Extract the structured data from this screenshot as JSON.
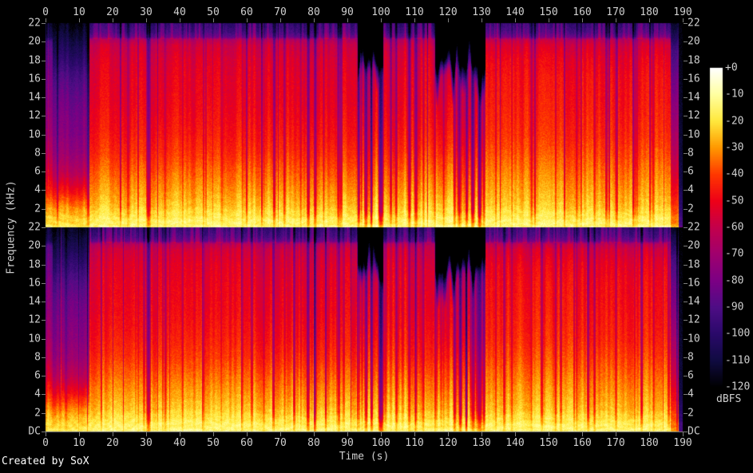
{
  "credit": "Created by SoX",
  "chart_data": {
    "type": "heatmap",
    "subtype": "stereo-spectrogram",
    "title": "",
    "xlabel": "Time (s)",
    "ylabel": "Frequency (kHz)",
    "x_range": [
      0,
      190
    ],
    "x_ticks": [
      0,
      10,
      20,
      30,
      40,
      50,
      60,
      70,
      80,
      90,
      100,
      110,
      120,
      130,
      140,
      150,
      160,
      170,
      180,
      190
    ],
    "y_range_khz": [
      0,
      22
    ],
    "freq_ticks_khz": [
      22,
      20,
      18,
      16,
      14,
      12,
      10,
      8,
      6,
      4,
      2
    ],
    "dc_label": "DC",
    "channels": 2,
    "grid": false,
    "colors": {
      "background": "#000000",
      "axis": "#7d7d7d",
      "text": "#cfcfcf",
      "credit_text": "#ffffff"
    },
    "colorbar": {
      "unit": "dBFS",
      "db_range": [
        0,
        -120
      ],
      "tick_labels": [
        "+0",
        "-10",
        "-20",
        "-30",
        "-40",
        "-50",
        "-60",
        "-70",
        "-80",
        "-90",
        "-100",
        "-110",
        "-120"
      ],
      "stops": [
        {
          "db": 0,
          "hex": "#ffffff"
        },
        {
          "db": -10,
          "hex": "#ffffa0"
        },
        {
          "db": -20,
          "hex": "#ffe83c"
        },
        {
          "db": -30,
          "hex": "#ff9800"
        },
        {
          "db": -40,
          "hex": "#ff3800"
        },
        {
          "db": -50,
          "hex": "#ee0018"
        },
        {
          "db": -60,
          "hex": "#c3004c"
        },
        {
          "db": -70,
          "hex": "#a0006e"
        },
        {
          "db": -80,
          "hex": "#7c0084"
        },
        {
          "db": -90,
          "hex": "#4e0d85"
        },
        {
          "db": -100,
          "hex": "#2a096a"
        },
        {
          "db": -110,
          "hex": "#100b41"
        },
        {
          "db": -120,
          "hex": "#000000"
        }
      ]
    },
    "seeds": [
      20,
      1020
    ],
    "profiles": {
      "introburst": [
        [
          0,
          -19
        ],
        [
          1,
          -22
        ],
        [
          2,
          -28
        ],
        [
          3,
          -36
        ],
        [
          4,
          -44
        ],
        [
          5,
          -50
        ],
        [
          6,
          -56
        ],
        [
          8,
          -64
        ],
        [
          10,
          -70
        ],
        [
          12,
          -74
        ],
        [
          14,
          -77
        ],
        [
          16,
          -80
        ],
        [
          18,
          -84
        ],
        [
          20,
          -90
        ],
        [
          20.5,
          -106
        ],
        [
          22,
          -114
        ]
      ],
      "intro": [
        [
          0,
          -19
        ],
        [
          1,
          -23
        ],
        [
          2,
          -30
        ],
        [
          3,
          -39
        ],
        [
          4,
          -48
        ],
        [
          5,
          -56
        ],
        [
          6,
          -63
        ],
        [
          8,
          -72
        ],
        [
          10,
          -77
        ],
        [
          12,
          -80
        ],
        [
          14,
          -84
        ],
        [
          16,
          -90
        ],
        [
          18,
          -99
        ],
        [
          20,
          -108
        ],
        [
          22,
          -117
        ]
      ],
      "loud": [
        [
          0,
          -15
        ],
        [
          0.7,
          -16
        ],
        [
          1.5,
          -20
        ],
        [
          2.5,
          -25
        ],
        [
          4,
          -30
        ],
        [
          6,
          -36
        ],
        [
          8,
          -42
        ],
        [
          10,
          -46
        ],
        [
          13,
          -50
        ],
        [
          16,
          -52
        ],
        [
          18,
          -54
        ],
        [
          19.6,
          -58
        ],
        [
          20.2,
          -64
        ],
        [
          20.5,
          -84
        ],
        [
          21,
          -92
        ],
        [
          22,
          -99
        ]
      ],
      "loud2": [
        [
          0,
          -15
        ],
        [
          0.7,
          -16
        ],
        [
          1.5,
          -20
        ],
        [
          2.5,
          -25
        ],
        [
          4,
          -29
        ],
        [
          6,
          -34
        ],
        [
          8,
          -39
        ],
        [
          10,
          -43
        ],
        [
          13,
          -46
        ],
        [
          16,
          -48
        ],
        [
          18,
          -51
        ],
        [
          19.6,
          -56
        ],
        [
          20.2,
          -62
        ],
        [
          20.5,
          -82
        ],
        [
          21,
          -91
        ],
        [
          22,
          -98
        ]
      ],
      "break": [
        [
          0,
          -15
        ],
        [
          1,
          -18
        ],
        [
          2,
          -24
        ],
        [
          3.5,
          -30
        ],
        [
          5,
          -35
        ],
        [
          7,
          -41
        ],
        [
          9,
          -47
        ],
        [
          12,
          -53
        ],
        [
          14,
          -56
        ],
        [
          16,
          -60
        ],
        [
          17,
          -68
        ],
        [
          18,
          -88
        ],
        [
          19,
          -100
        ],
        [
          22,
          -110
        ]
      ],
      "fade": [
        [
          0,
          -30
        ],
        [
          1.5,
          -36
        ],
        [
          3,
          -44
        ],
        [
          5,
          -52
        ],
        [
          8,
          -62
        ],
        [
          12,
          -72
        ],
        [
          16,
          -82
        ],
        [
          19,
          -92
        ],
        [
          20.3,
          -102
        ],
        [
          22,
          -114
        ]
      ],
      "silence": [
        [
          0,
          -90
        ],
        [
          2,
          -100
        ],
        [
          5,
          -110
        ],
        [
          22,
          -120
        ]
      ]
    },
    "sections": [
      {
        "t0": 0,
        "t1": 2,
        "profile": "introburst",
        "colvar": 6,
        "streaks": 0.5
      },
      {
        "t0": 2,
        "t1": 13,
        "profile": "intro",
        "colvar": 5,
        "streaks": 1
      },
      {
        "t0": 13,
        "t1": 93,
        "profile": "loud",
        "colvar": 5,
        "hfstripes": 1
      },
      {
        "t0": 93,
        "t1": 100.6,
        "profile": "break",
        "colvar": 10,
        "breakhf": 1
      },
      {
        "t0": 100.6,
        "t1": 116,
        "profile": "loud",
        "colvar": 8,
        "hfstripes": 1
      },
      {
        "t0": 116,
        "t1": 131,
        "profile": "break",
        "colvar": 11,
        "breakhf": 1
      },
      {
        "t0": 131,
        "t1": 186.2,
        "profile": "loud2",
        "colvar": 5,
        "hfstripes": 1
      },
      {
        "t0": 186.2,
        "t1": 188.6,
        "profile": "fade",
        "colvar": 4
      },
      {
        "t0": 188.6,
        "t1": 190,
        "profile": "silence",
        "colvar": 2
      }
    ],
    "events": [
      {
        "t": 30.6,
        "w": 0.8,
        "depth": 34
      },
      {
        "t": 35.5,
        "w": 0.25,
        "depth": 10
      },
      {
        "t": 40.8,
        "w": 0.25,
        "depth": 10
      },
      {
        "t": 47.0,
        "w": 0.3,
        "depth": 12
      },
      {
        "t": 52.3,
        "w": 0.25,
        "depth": 10
      },
      {
        "t": 58.6,
        "w": 0.3,
        "depth": 11
      },
      {
        "t": 65.0,
        "w": 0.3,
        "depth": 12
      },
      {
        "t": 71.2,
        "w": 0.35,
        "depth": 14
      },
      {
        "t": 76.0,
        "w": 0.3,
        "depth": 12
      },
      {
        "t": 78.2,
        "w": 0.6,
        "depth": 30
      },
      {
        "t": 80.3,
        "w": 0.5,
        "depth": 26
      },
      {
        "t": 87.4,
        "w": 0.4,
        "depth": 20
      },
      {
        "t": 93.3,
        "w": 0.5,
        "depth": 22
      },
      {
        "t": 95.4,
        "w": 0.6,
        "depth": 28
      },
      {
        "t": 97.1,
        "w": 0.5,
        "depth": 24
      },
      {
        "t": 99.9,
        "w": 0.9,
        "depth": 50
      },
      {
        "t": 104.5,
        "w": 0.4,
        "depth": 18
      },
      {
        "t": 108.4,
        "w": 0.5,
        "depth": 22
      },
      {
        "t": 110.3,
        "w": 0.6,
        "depth": 24
      },
      {
        "t": 112.6,
        "w": 0.4,
        "depth": 18
      },
      {
        "t": 116.0,
        "w": 0.3,
        "depth": 14
      },
      {
        "t": 118.6,
        "w": 0.3,
        "depth": 14
      },
      {
        "t": 121.8,
        "w": 0.5,
        "depth": 24
      },
      {
        "t": 123.6,
        "w": 0.6,
        "depth": 27
      },
      {
        "t": 125.4,
        "w": 0.5,
        "depth": 25
      },
      {
        "t": 127.3,
        "w": 0.7,
        "depth": 30
      },
      {
        "t": 129.4,
        "w": 0.8,
        "depth": 35
      },
      {
        "t": 130.6,
        "w": 0.5,
        "depth": 26
      },
      {
        "t": 134.2,
        "w": 0.3,
        "depth": 13
      },
      {
        "t": 139.0,
        "w": 0.3,
        "depth": 13
      },
      {
        "t": 144.8,
        "w": 0.35,
        "depth": 14
      },
      {
        "t": 152.0,
        "w": 0.35,
        "depth": 14
      },
      {
        "t": 158.3,
        "w": 0.3,
        "depth": 13
      },
      {
        "t": 163.6,
        "w": 0.4,
        "depth": 16
      },
      {
        "t": 170.0,
        "w": 0.35,
        "depth": 14
      },
      {
        "t": 175.6,
        "w": 0.35,
        "depth": 14
      },
      {
        "t": 181.2,
        "w": 0.35,
        "depth": 14
      }
    ]
  }
}
